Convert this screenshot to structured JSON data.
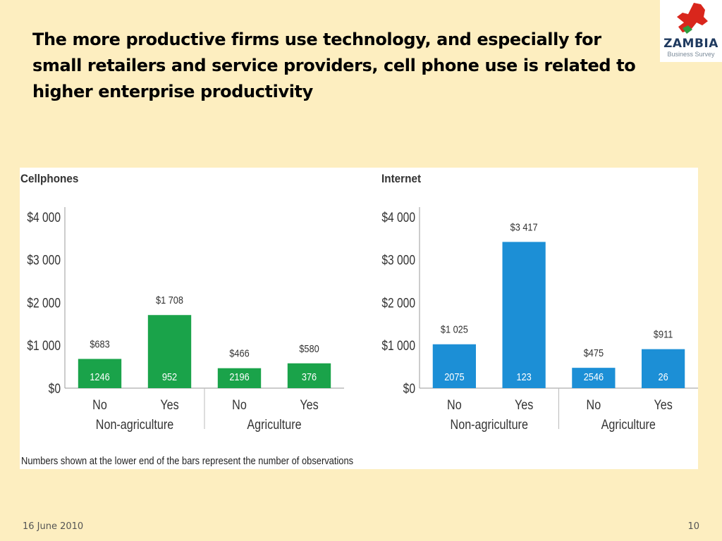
{
  "slide": {
    "title": "The more productive firms use technology, and especially for small retailers and service providers, cell phone use is related to higher enterprise productivity",
    "footer_date": "16 June 2010",
    "page_number": "10",
    "footnote": "Numbers shown at the lower end of the bars represent the number of observations"
  },
  "logo": {
    "text": "ZAMBIA",
    "subtext": "Business Survey",
    "colors": {
      "map": "#d9261c",
      "map_accent": "#2e9d3e",
      "text": "#1f3a5f"
    }
  },
  "colors": {
    "cellphones": "#1aa34a",
    "internet": "#1c8fd6",
    "background": "#fdeec0"
  },
  "chart_data": [
    {
      "type": "bar",
      "title": "Cellphones",
      "categories": [
        "No",
        "Yes",
        "No",
        "Yes"
      ],
      "groups": [
        "Non-agriculture",
        "Agriculture"
      ],
      "values": [
        683,
        1708,
        466,
        580
      ],
      "value_labels": [
        "$683",
        "$1 708",
        "$466",
        "$580"
      ],
      "observations": [
        "1246",
        "952",
        "2196",
        "376"
      ],
      "ylim": [
        0,
        4000
      ],
      "yticks": [
        "$0",
        "$1 000",
        "$2 000",
        "$3 000",
        "$4 000"
      ],
      "color": "#1aa34a"
    },
    {
      "type": "bar",
      "title": "Internet",
      "categories": [
        "No",
        "Yes",
        "No",
        "Yes"
      ],
      "groups": [
        "Non-agriculture",
        "Agriculture"
      ],
      "values": [
        1025,
        3417,
        475,
        911
      ],
      "value_labels": [
        "$1 025",
        "$3 417",
        "$475",
        "$911"
      ],
      "observations": [
        "2075",
        "123",
        "2546",
        "26"
      ],
      "ylim": [
        0,
        4000
      ],
      "yticks": [
        "$0",
        "$1 000",
        "$2 000",
        "$3 000",
        "$4 000"
      ],
      "color": "#1c8fd6"
    }
  ]
}
